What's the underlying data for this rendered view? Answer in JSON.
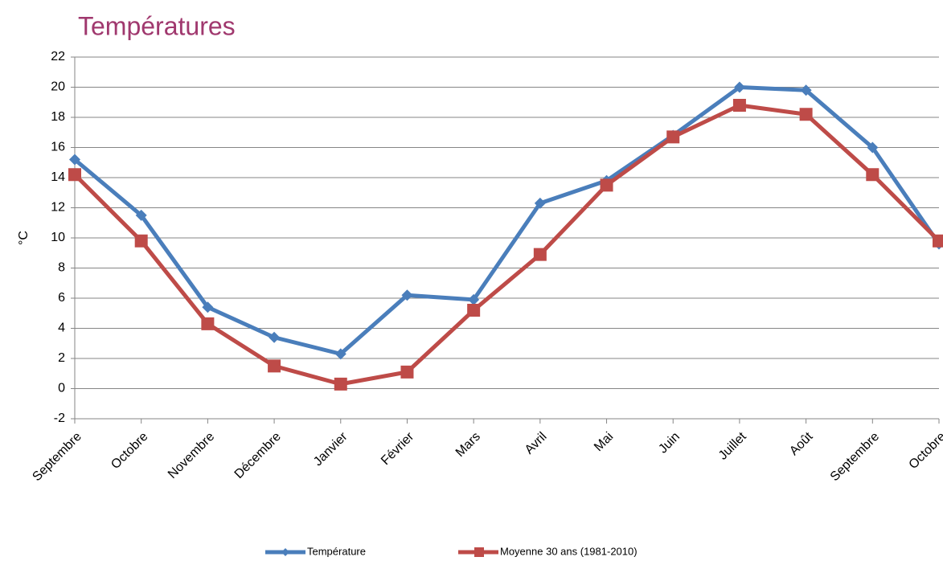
{
  "chart_data": {
    "type": "line",
    "title": "Températures",
    "y_label": "°C",
    "categories": [
      "Septembre",
      "Octobre",
      "Novembre",
      "Décembre",
      "Janvier",
      "Février",
      "Mars",
      "Avril",
      "Mai",
      "Juin",
      "Juillet",
      "Août",
      "Septembre",
      "Octobre"
    ],
    "series": [
      {
        "name": "Température",
        "color": "#4a7ebb",
        "marker": "diamond",
        "values": [
          15.2,
          11.5,
          5.4,
          3.4,
          2.3,
          6.2,
          5.9,
          12.3,
          13.8,
          16.8,
          20.0,
          19.8,
          16.0,
          9.6
        ]
      },
      {
        "name": "Moyenne 30 ans (1981-2010)",
        "color": "#be4b48",
        "marker": "square",
        "values": [
          14.2,
          9.8,
          4.3,
          1.5,
          0.3,
          1.1,
          5.2,
          8.9,
          13.5,
          16.7,
          18.8,
          18.2,
          14.2,
          9.8
        ]
      }
    ],
    "ylim": [
      -2,
      22
    ],
    "yticks": [
      -2,
      0,
      2,
      4,
      6,
      8,
      10,
      12,
      14,
      16,
      18,
      20,
      22
    ],
    "grid": true,
    "legend": "bottom"
  }
}
